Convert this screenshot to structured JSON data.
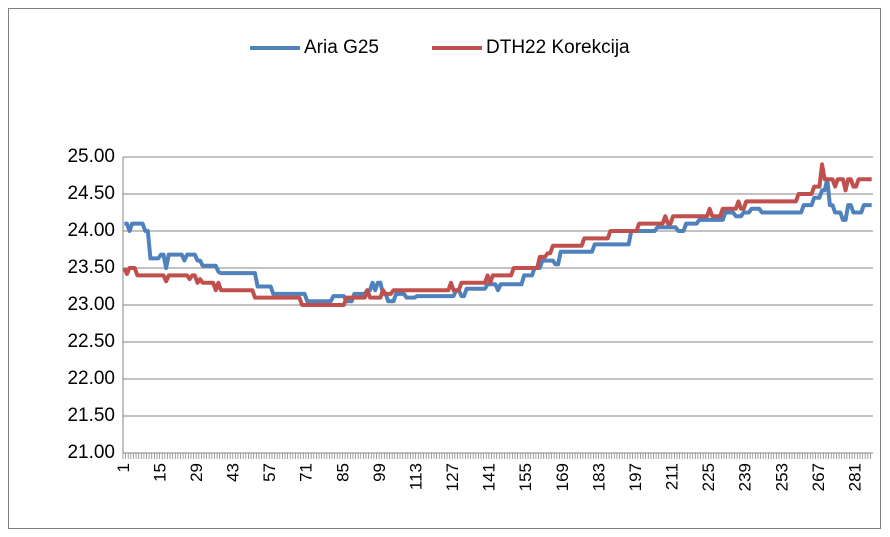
{
  "chart_data": {
    "type": "line",
    "categories": [
      1,
      null,
      null,
      null,
      null,
      null,
      null,
      null,
      null,
      null,
      null,
      null,
      null,
      null,
      15,
      null,
      null,
      null,
      null,
      null,
      null,
      null,
      null,
      null,
      null,
      null,
      null,
      null,
      29,
      null,
      null,
      null,
      null,
      null,
      null,
      null,
      null,
      null,
      null,
      null,
      null,
      null,
      43,
      null,
      null,
      null,
      null,
      null,
      null,
      null,
      null,
      null,
      null,
      null,
      null,
      null,
      57,
      null,
      null,
      null,
      null,
      null,
      null,
      null,
      null,
      null,
      null,
      null,
      null,
      null,
      71,
      null,
      null,
      null,
      null,
      null,
      null,
      null,
      null,
      null,
      null,
      null,
      null,
      null,
      85,
      null,
      null,
      null,
      null,
      null,
      null,
      null,
      null,
      null,
      null,
      null,
      null,
      null,
      99,
      null,
      null,
      null,
      null,
      null,
      null,
      null,
      null,
      null,
      null,
      null,
      null,
      null,
      113,
      null,
      null,
      null,
      null,
      null,
      null,
      null,
      null,
      null,
      null,
      null,
      null,
      null,
      127,
      null,
      null,
      null,
      null,
      null,
      null,
      null,
      null,
      null,
      null,
      null,
      null,
      null,
      141,
      null,
      null,
      null,
      null,
      null,
      null,
      null,
      null,
      null,
      null,
      null,
      null,
      null,
      155,
      null,
      null,
      null,
      null,
      null,
      null,
      null,
      null,
      null,
      null,
      null,
      null,
      null,
      169,
      null,
      null,
      null,
      null,
      null,
      null,
      null,
      null,
      null,
      null,
      null,
      null,
      null,
      183,
      null,
      null,
      null,
      null,
      null,
      null,
      null,
      null,
      null,
      null,
      null,
      null,
      null,
      197,
      null,
      null,
      null,
      null,
      null,
      null,
      null,
      null,
      null,
      null,
      null,
      null,
      null,
      211,
      null,
      null,
      null,
      null,
      null,
      null,
      null,
      null,
      null,
      null,
      null,
      null,
      null,
      225,
      null,
      null,
      null,
      null,
      null,
      null,
      null,
      null,
      null,
      null,
      null,
      null,
      null,
      239,
      null,
      null,
      null,
      null,
      null,
      null,
      null,
      null,
      null,
      null,
      null,
      null,
      null,
      253,
      null,
      null,
      null,
      null,
      null,
      null,
      null,
      null,
      null,
      null,
      null,
      null,
      null,
      267,
      null,
      null,
      null,
      null,
      null,
      null,
      null,
      null,
      null,
      null,
      null,
      null,
      null,
      281,
      null,
      null,
      null,
      null,
      null,
      null
    ],
    "series": [
      {
        "name": "Aria G25",
        "color": "#4f81bd",
        "values": [
          24.1,
          24.1,
          24.0,
          24.1,
          24.1,
          24.1,
          24.1,
          24.1,
          24.0,
          24.0,
          23.63,
          23.63,
          23.63,
          23.63,
          23.68,
          23.68,
          23.5,
          23.68,
          23.68,
          23.68,
          23.68,
          23.68,
          23.68,
          23.6,
          23.68,
          23.68,
          23.68,
          23.68,
          23.6,
          23.6,
          23.53,
          23.53,
          23.53,
          23.53,
          23.53,
          23.53,
          23.45,
          23.43,
          23.43,
          23.43,
          23.43,
          23.43,
          23.43,
          23.43,
          23.43,
          23.43,
          23.43,
          23.43,
          23.43,
          23.43,
          23.43,
          23.25,
          23.25,
          23.25,
          23.25,
          23.25,
          23.25,
          23.15,
          23.15,
          23.15,
          23.15,
          23.15,
          23.15,
          23.15,
          23.15,
          23.15,
          23.15,
          23.15,
          23.15,
          23.15,
          23.05,
          23.05,
          23.05,
          23.05,
          23.05,
          23.05,
          23.05,
          23.05,
          23.05,
          23.05,
          23.12,
          23.12,
          23.12,
          23.12,
          23.12,
          23.05,
          23.05,
          23.05,
          23.15,
          23.15,
          23.15,
          23.15,
          23.15,
          23.2,
          23.2,
          23.3,
          23.2,
          23.3,
          23.3,
          23.15,
          23.15,
          23.05,
          23.05,
          23.05,
          23.15,
          23.15,
          23.15,
          23.15,
          23.1,
          23.1,
          23.1,
          23.1,
          23.12,
          23.12,
          23.12,
          23.12,
          23.12,
          23.12,
          23.12,
          23.12,
          23.12,
          23.12,
          23.12,
          23.12,
          23.12,
          23.12,
          23.12,
          23.2,
          23.2,
          23.12,
          23.12,
          23.22,
          23.22,
          23.22,
          23.22,
          23.22,
          23.22,
          23.22,
          23.22,
          23.28,
          23.28,
          23.28,
          23.28,
          23.2,
          23.28,
          23.28,
          23.28,
          23.28,
          23.28,
          23.28,
          23.28,
          23.28,
          23.28,
          23.4,
          23.4,
          23.4,
          23.4,
          23.5,
          23.5,
          23.5,
          23.6,
          23.6,
          23.6,
          23.6,
          23.6,
          23.55,
          23.55,
          23.72,
          23.72,
          23.72,
          23.72,
          23.72,
          23.72,
          23.72,
          23.72,
          23.72,
          23.72,
          23.72,
          23.72,
          23.72,
          23.82,
          23.82,
          23.82,
          23.82,
          23.82,
          23.82,
          23.82,
          23.82,
          23.82,
          23.82,
          23.82,
          23.82,
          23.82,
          23.82,
          24.0,
          24.0,
          24.0,
          24.0,
          24.0,
          24.0,
          24.0,
          24.0,
          24.0,
          24.0,
          24.05,
          24.05,
          24.05,
          24.05,
          24.05,
          24.05,
          24.05,
          24.05,
          24.0,
          24.0,
          24.0,
          24.1,
          24.1,
          24.1,
          24.1,
          24.1,
          24.15,
          24.15,
          24.15,
          24.15,
          24.15,
          24.15,
          24.15,
          24.15,
          24.15,
          24.15,
          24.25,
          24.25,
          24.25,
          24.25,
          24.2,
          24.2,
          24.2,
          24.25,
          24.25,
          24.25,
          24.3,
          24.3,
          24.3,
          24.3,
          24.25,
          24.25,
          24.25,
          24.25,
          24.25,
          24.25,
          24.25,
          24.25,
          24.25,
          24.25,
          24.25,
          24.25,
          24.25,
          24.25,
          24.25,
          24.25,
          24.35,
          24.35,
          24.35,
          24.35,
          24.45,
          24.45,
          24.45,
          24.55,
          24.55,
          24.7,
          24.35,
          24.35,
          24.25,
          24.25,
          24.25,
          24.15,
          24.15,
          24.35,
          24.35,
          24.25,
          24.25,
          24.25,
          24.25,
          24.35,
          24.35,
          24.35,
          24.35
        ]
      },
      {
        "name": "DTH22 Korekcija",
        "color": "#c0504d",
        "values": [
          23.5,
          23.42,
          23.5,
          23.5,
          23.5,
          23.4,
          23.4,
          23.4,
          23.4,
          23.4,
          23.4,
          23.4,
          23.4,
          23.4,
          23.4,
          23.4,
          23.32,
          23.4,
          23.4,
          23.4,
          23.4,
          23.4,
          23.4,
          23.4,
          23.4,
          23.35,
          23.4,
          23.4,
          23.3,
          23.35,
          23.3,
          23.3,
          23.3,
          23.3,
          23.3,
          23.2,
          23.3,
          23.2,
          23.2,
          23.2,
          23.2,
          23.2,
          23.2,
          23.2,
          23.2,
          23.2,
          23.2,
          23.2,
          23.2,
          23.2,
          23.1,
          23.1,
          23.1,
          23.1,
          23.1,
          23.1,
          23.1,
          23.1,
          23.1,
          23.1,
          23.1,
          23.1,
          23.1,
          23.1,
          23.1,
          23.1,
          23.1,
          23.1,
          23.0,
          23.0,
          23.0,
          23.0,
          23.0,
          23.0,
          23.0,
          23.0,
          23.0,
          23.0,
          23.0,
          23.0,
          23.0,
          23.0,
          23.0,
          23.0,
          23.0,
          23.1,
          23.1,
          23.1,
          23.1,
          23.1,
          23.1,
          23.1,
          23.1,
          23.2,
          23.1,
          23.1,
          23.1,
          23.1,
          23.1,
          23.2,
          23.15,
          23.15,
          23.15,
          23.2,
          23.2,
          23.2,
          23.2,
          23.2,
          23.2,
          23.2,
          23.2,
          23.2,
          23.2,
          23.2,
          23.2,
          23.2,
          23.2,
          23.2,
          23.2,
          23.2,
          23.2,
          23.2,
          23.2,
          23.2,
          23.2,
          23.3,
          23.2,
          23.2,
          23.2,
          23.3,
          23.3,
          23.3,
          23.3,
          23.3,
          23.3,
          23.3,
          23.3,
          23.3,
          23.3,
          23.4,
          23.3,
          23.4,
          23.4,
          23.4,
          23.4,
          23.4,
          23.4,
          23.4,
          23.4,
          23.5,
          23.5,
          23.5,
          23.5,
          23.5,
          23.5,
          23.5,
          23.5,
          23.5,
          23.5,
          23.65,
          23.65,
          23.65,
          23.7,
          23.7,
          23.8,
          23.8,
          23.8,
          23.8,
          23.8,
          23.8,
          23.8,
          23.8,
          23.8,
          23.8,
          23.8,
          23.8,
          23.9,
          23.9,
          23.9,
          23.9,
          23.9,
          23.9,
          23.9,
          23.9,
          23.9,
          23.9,
          24.0,
          24.0,
          24.0,
          24.0,
          24.0,
          24.0,
          24.0,
          24.0,
          24.0,
          24.0,
          24.0,
          24.1,
          24.1,
          24.1,
          24.1,
          24.1,
          24.1,
          24.1,
          24.1,
          24.1,
          24.1,
          24.2,
          24.1,
          24.1,
          24.2,
          24.2,
          24.2,
          24.2,
          24.2,
          24.2,
          24.2,
          24.2,
          24.2,
          24.2,
          24.2,
          24.2,
          24.2,
          24.2,
          24.3,
          24.2,
          24.2,
          24.2,
          24.2,
          24.3,
          24.3,
          24.3,
          24.3,
          24.3,
          24.3,
          24.4,
          24.3,
          24.3,
          24.4,
          24.4,
          24.4,
          24.4,
          24.4,
          24.4,
          24.4,
          24.4,
          24.4,
          24.4,
          24.4,
          24.4,
          24.4,
          24.4,
          24.4,
          24.4,
          24.4,
          24.4,
          24.4,
          24.4,
          24.5,
          24.5,
          24.5,
          24.5,
          24.5,
          24.5,
          24.6,
          24.6,
          24.6,
          24.9,
          24.7,
          24.7,
          24.7,
          24.7,
          24.6,
          24.7,
          24.7,
          24.7,
          24.55,
          24.7,
          24.7,
          24.6,
          24.6,
          24.7,
          24.7,
          24.7,
          24.7,
          24.7,
          24.7
        ]
      }
    ],
    "ylim": [
      21,
      25
    ],
    "yticks": [
      {
        "value": 21,
        "label": "21.00"
      },
      {
        "value": 21.5,
        "label": "21.50"
      },
      {
        "value": 22,
        "label": "22.00"
      },
      {
        "value": 22.5,
        "label": "22.50"
      },
      {
        "value": 23,
        "label": "23.00"
      },
      {
        "value": 23.5,
        "label": "23.50"
      },
      {
        "value": 24,
        "label": "24.00"
      },
      {
        "value": 24.5,
        "label": "24.50"
      },
      {
        "value": 25,
        "label": "25.00"
      }
    ],
    "grid": true,
    "legend": "top"
  }
}
